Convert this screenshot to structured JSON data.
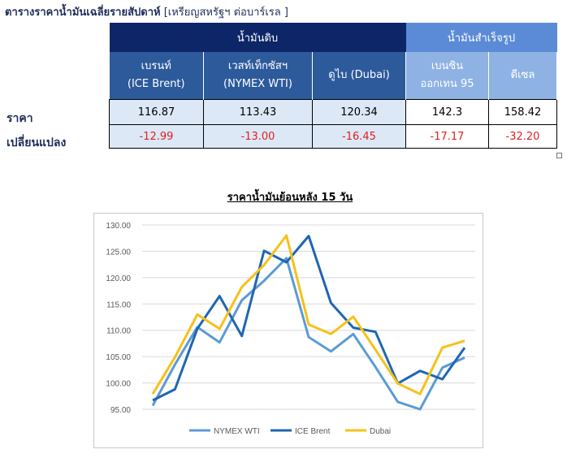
{
  "header": {
    "title_bold": "ตารางราคาน้ำมันเฉลี่ยรายสัปดาห์",
    "title_unit": "[เหรียญสหรัฐฯ ต่อบาร์เรล ]"
  },
  "table": {
    "group_headers": [
      "น้ำมันดิบ",
      "น้ำมันสำเร็จรูป"
    ],
    "columns": [
      {
        "line1": "เบรนท์",
        "line2": "(ICE Brent)"
      },
      {
        "line1": "เวสท์เท็กซัสฯ",
        "line2": "(NYMEX WTI)"
      },
      {
        "line1": "ดูไบ (Dubai)",
        "line2": ""
      },
      {
        "line1": "เบนซิน",
        "line2": "ออกเทน  95"
      },
      {
        "line1": "ดีเซล",
        "line2": ""
      }
    ],
    "row_labels": [
      "ราคา",
      "เปลี่ยนแปลง"
    ],
    "price": [
      "116.87",
      "113.43",
      "120.34",
      "142.3",
      "158.42"
    ],
    "change": [
      "-12.99",
      "-13.00",
      "-16.45",
      "-17.17",
      "-32.20"
    ]
  },
  "chart_title": "ราคาน้ำมันย้อนหลัง 15 วัน",
  "chart_data": {
    "type": "line",
    "title": "ราคาน้ำมันย้อนหลัง 15 วัน",
    "xlabel": "",
    "ylabel": "",
    "ylim": [
      95,
      130
    ],
    "yticks": [
      "95.00",
      "100.00",
      "105.00",
      "110.00",
      "115.00",
      "120.00",
      "125.00",
      "130.00"
    ],
    "grid": true,
    "legend_position": "bottom",
    "x": [
      1,
      2,
      3,
      4,
      5,
      6,
      7,
      8,
      9,
      10,
      11,
      12,
      13,
      14,
      15
    ],
    "series": [
      {
        "name": "NYMEX WTI",
        "color": "#5b9bd5",
        "values": [
          95.7,
          103.5,
          110.6,
          107.7,
          115.7,
          119.4,
          123.7,
          108.7,
          106.0,
          109.3,
          103.0,
          96.4,
          95.0,
          102.9,
          104.8
        ]
      },
      {
        "name": "ICE Brent",
        "color": "#1f67b1",
        "values": [
          96.7,
          98.8,
          110.3,
          116.5,
          108.9,
          125.1,
          122.9,
          127.9,
          115.2,
          110.5,
          109.7,
          99.9,
          102.3,
          100.7,
          106.7
        ]
      },
      {
        "name": "Dubai",
        "color": "#f6c119",
        "values": [
          97.9,
          104.9,
          113.0,
          110.3,
          118.2,
          122.4,
          128.0,
          111.1,
          109.3,
          112.6,
          106.3,
          99.9,
          97.9,
          106.7,
          108.0
        ]
      }
    ]
  }
}
